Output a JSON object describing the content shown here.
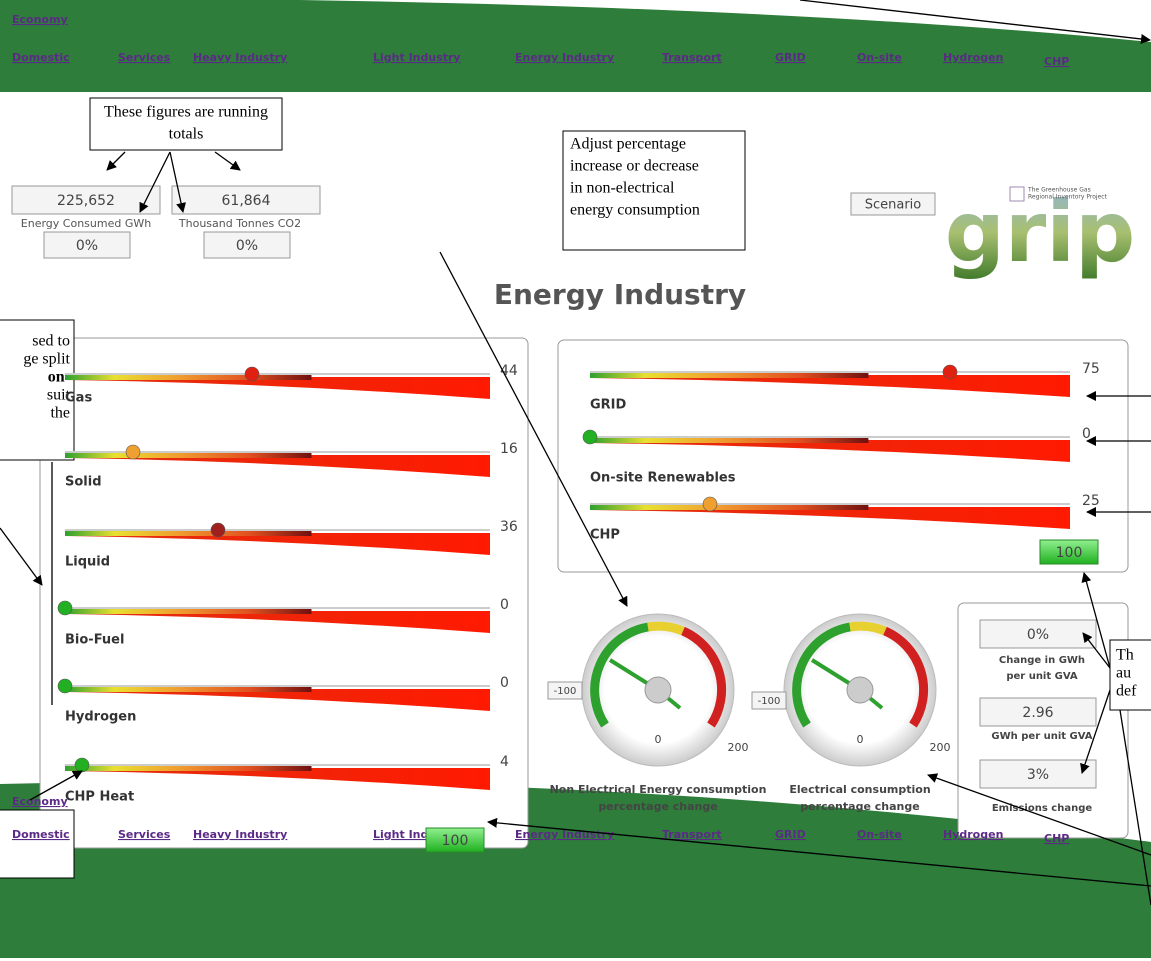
{
  "nav": {
    "economy": "Economy",
    "links": [
      "Domestic",
      "Services",
      "Heavy Industry",
      "Light Industry",
      "Energy Industry",
      "Transport",
      "GRID",
      "On-site",
      "Hydrogen",
      "CHP"
    ]
  },
  "callouts": {
    "running_totals": [
      "These figures are running",
      "totals"
    ],
    "adjust": [
      "Adjust percentage",
      "increase or decrease",
      "in non-electrical",
      "energy consumption"
    ],
    "left_cropped": [
      "sed to",
      "ge split",
      "on-",
      "suit",
      "the"
    ],
    "right_cropped": [
      "Th",
      "au",
      "def"
    ]
  },
  "totals": {
    "energy": {
      "value": "225,652",
      "label": "Energy Consumed  GWh",
      "change": "0%"
    },
    "co2": {
      "value": "61,864",
      "label": "Thousand Tonnes CO2",
      "change": "0%"
    }
  },
  "scenario": "Scenario",
  "logo": {
    "text": "grip",
    "tagline": [
      "The Greenhouse Gas",
      "Regional Inventory Project"
    ]
  },
  "title": "Energy Industry",
  "left_panel": {
    "sliders": [
      {
        "label": "Gas",
        "value": 44
      },
      {
        "label": "Solid",
        "value": 16
      },
      {
        "label": "Liquid",
        "value": 36
      },
      {
        "label": "Bio-Fuel",
        "value": 0
      },
      {
        "label": "Hydrogen",
        "value": 0
      },
      {
        "label": "CHP Heat",
        "value": 4
      }
    ],
    "total": 100
  },
  "right_panel": {
    "sliders": [
      {
        "label": "GRID",
        "value": 75
      },
      {
        "label": "On-site Renewables",
        "value": 0
      },
      {
        "label": "CHP",
        "value": 25
      }
    ],
    "total": 100
  },
  "gauges": [
    {
      "min": -100,
      "mid": 0,
      "max": 200,
      "caption": [
        "Non Electrical Energy consumption",
        "percentage change"
      ]
    },
    {
      "min": -100,
      "mid": 0,
      "max": 200,
      "caption": [
        "Electrical consumption",
        "percentage change"
      ]
    }
  ],
  "summary": [
    {
      "value": "0%",
      "label": [
        "Change in GWh",
        "per unit GVA"
      ]
    },
    {
      "value": "2.96",
      "label": [
        "GWh per unit GVA"
      ]
    },
    {
      "value": "3%",
      "label": [
        "Emissions change"
      ]
    }
  ]
}
